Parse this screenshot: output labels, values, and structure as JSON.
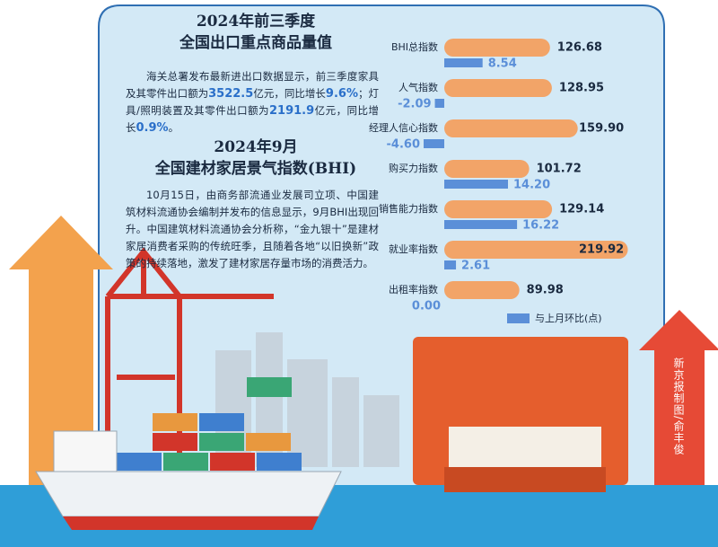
{
  "header": {
    "title1": [
      "2024年前三季度",
      "全国出口重点商品量值"
    ],
    "para1": [
      "海关总署发布最新进出口数据显示，前三季度家具及其零件出口额为",
      "3522.5",
      "亿元，同比增长",
      "9.6%",
      "；灯具/照明装置及其零件出口额为",
      "2191.9",
      "亿元，同比增长",
      "0.9%",
      "。"
    ],
    "title2": [
      "2024年9月",
      "全国建材家居景气指数(BHI)"
    ],
    "para2": "10月15日，由商务部流通业发展司立项、中国建筑材料流通协会编制并发布的信息显示，9月BHI出现回升。中国建筑材料流通协会分析称，“金九银十”是建材家居消费者采购的传统旺季，且随着各地“以旧换新”政策的持续落地，激发了建材家居存量市场的消费活力。"
  },
  "credit": "新京报制图/俞丰俊",
  "chart_data": {
    "type": "bar",
    "orientation": "horizontal",
    "categories": [
      "BHI总指数",
      "人气指数",
      "经理人信心指数",
      "购买力指数",
      "销售能力指数",
      "就业率指数",
      "出租率指数"
    ],
    "series": [
      {
        "color": "#f2a468",
        "values": [
          126.68,
          128.95,
          159.9,
          101.72,
          129.14,
          219.92,
          89.98
        ],
        "value_labels": [
          "126.68",
          "128.95",
          "159.90",
          "101.72",
          "129.14",
          "219.92",
          "89.98"
        ]
      },
      {
        "name": "与上月环比(点)",
        "color": "#5b8fd8",
        "values": [
          8.54,
          -2.09,
          -4.6,
          14.2,
          16.22,
          2.61,
          0
        ],
        "value_labels": [
          "8.54",
          "-2.09",
          "-4.60",
          "14.20",
          "16.22",
          "2.61",
          "0.00"
        ]
      }
    ]
  }
}
